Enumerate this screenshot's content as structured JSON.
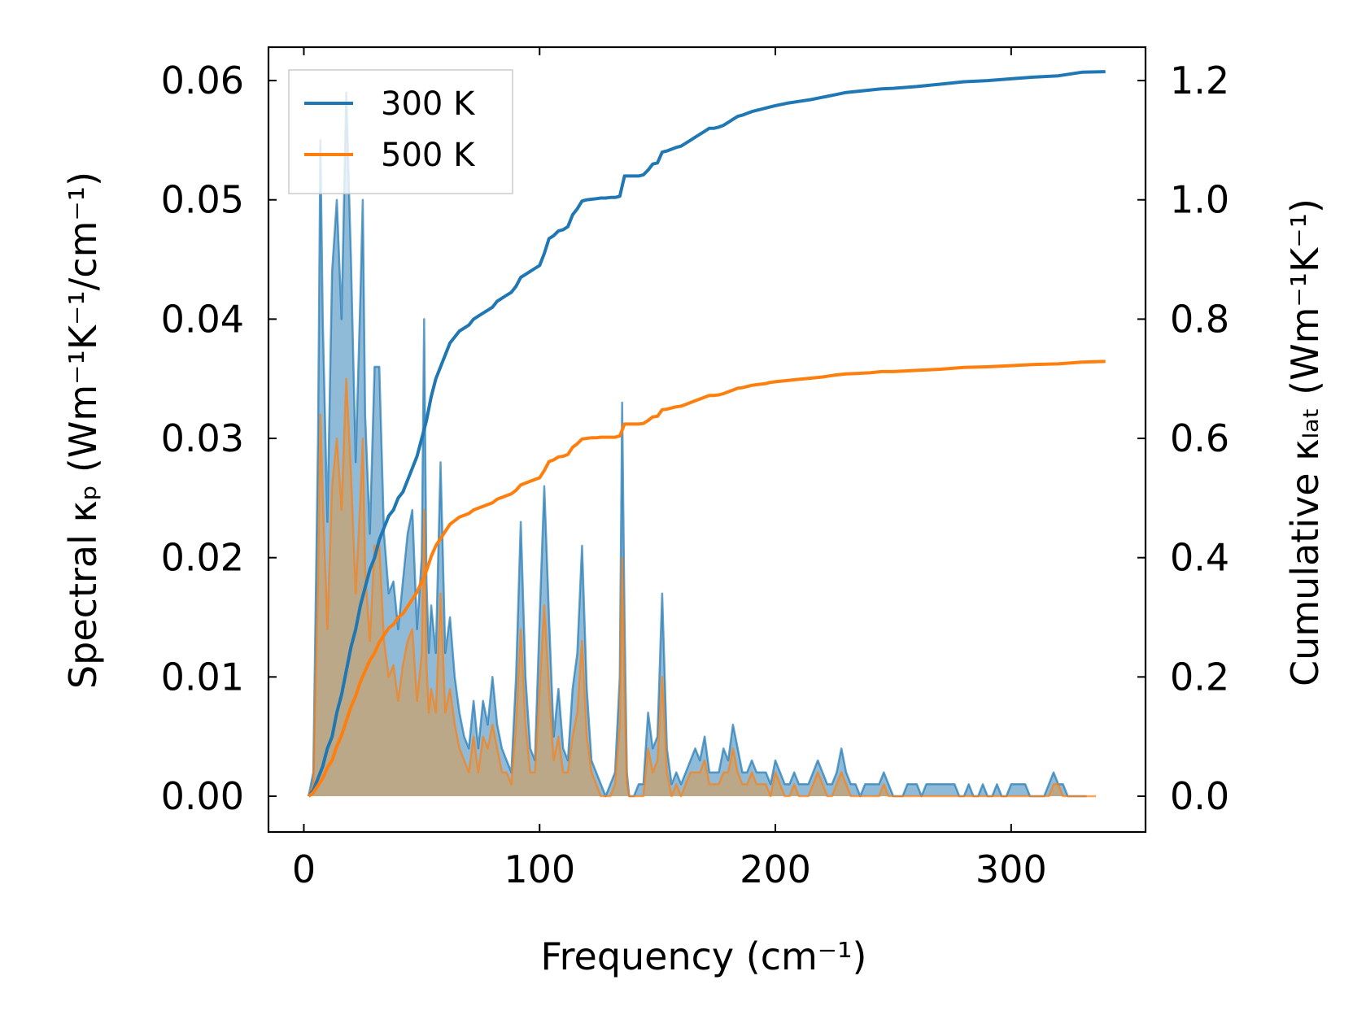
{
  "chart_data": {
    "type": "line",
    "xlabel": "Frequency (cm⁻¹)",
    "ylabel_left": "Spectral κₚ (Wm⁻¹K⁻¹/cm⁻¹)",
    "ylabel_right": "Cumulative κₗₐₜ (Wm⁻¹K⁻¹)",
    "xlim": [
      -15,
      357
    ],
    "ylim_left": [
      -0.003,
      0.0628
    ],
    "ylim_right": [
      -0.06,
      1.256
    ],
    "xticks": [
      0,
      100,
      200,
      300
    ],
    "xtick_labels": [
      "0",
      "100",
      "200",
      "300"
    ],
    "yticks_left": [
      0.0,
      0.01,
      0.02,
      0.03,
      0.04,
      0.05,
      0.06
    ],
    "ytick_labels_left": [
      "0.00",
      "0.01",
      "0.02",
      "0.03",
      "0.04",
      "0.05",
      "0.06"
    ],
    "yticks_right": [
      0.0,
      0.2,
      0.4,
      0.6,
      0.8,
      1.0,
      1.2
    ],
    "ytick_labels_right": [
      "0.0",
      "0.2",
      "0.4",
      "0.6",
      "0.8",
      "1.0",
      "1.2"
    ],
    "legend_position": "top-left",
    "series": [
      {
        "name": "300 K",
        "color": "#1f77b4",
        "fill": "#1f77b4",
        "spectral_x": [
          2,
          4,
          6,
          7,
          8,
          10,
          12,
          14,
          16,
          18,
          20,
          22,
          24,
          25,
          26,
          28,
          30,
          32,
          34,
          36,
          38,
          40,
          42,
          44,
          46,
          48,
          50,
          51,
          52,
          53,
          54,
          56,
          58,
          60,
          62,
          64,
          66,
          68,
          70,
          72,
          74,
          76,
          78,
          80,
          82,
          84,
          86,
          88,
          90,
          92,
          94,
          96,
          98,
          100,
          102,
          104,
          106,
          108,
          110,
          112,
          114,
          116,
          118,
          120,
          122,
          124,
          126,
          128,
          130,
          132,
          134,
          135,
          136,
          137,
          138,
          140,
          142,
          144,
          146,
          148,
          150,
          152,
          154,
          156,
          158,
          160,
          162,
          164,
          166,
          168,
          170,
          172,
          174,
          176,
          178,
          180,
          182,
          184,
          186,
          188,
          190,
          192,
          194,
          196,
          198,
          200,
          202,
          204,
          206,
          208,
          210,
          212,
          214,
          216,
          218,
          220,
          222,
          224,
          226,
          228,
          230,
          232,
          234,
          236,
          238,
          240,
          242,
          244,
          246,
          248,
          250,
          252,
          254,
          256,
          258,
          260,
          262,
          264,
          266,
          268,
          270,
          272,
          274,
          276,
          278,
          280,
          282,
          284,
          286,
          288,
          290,
          292,
          294,
          296,
          298,
          300,
          302,
          304,
          306,
          308,
          310,
          312,
          314,
          316,
          318,
          320,
          322,
          324,
          326,
          328,
          330,
          332,
          334,
          336,
          338,
          340
        ],
        "spectral_y": [
          0.0,
          0.002,
          0.03,
          0.055,
          0.04,
          0.023,
          0.044,
          0.05,
          0.04,
          0.059,
          0.045,
          0.028,
          0.042,
          0.05,
          0.032,
          0.022,
          0.036,
          0.036,
          0.022,
          0.017,
          0.018,
          0.014,
          0.018,
          0.022,
          0.024,
          0.014,
          0.02,
          0.04,
          0.018,
          0.012,
          0.016,
          0.012,
          0.028,
          0.012,
          0.015,
          0.01,
          0.007,
          0.005,
          0.004,
          0.008,
          0.004,
          0.008,
          0.006,
          0.01,
          0.006,
          0.004,
          0.003,
          0.002,
          0.01,
          0.023,
          0.01,
          0.004,
          0.003,
          0.015,
          0.026,
          0.015,
          0.005,
          0.009,
          0.004,
          0.003,
          0.009,
          0.012,
          0.021,
          0.009,
          0.003,
          0.002,
          0.001,
          0.0,
          0.001,
          0.002,
          0.01,
          0.033,
          0.015,
          0.002,
          0.0,
          0.0,
          0.001,
          0.001,
          0.007,
          0.004,
          0.005,
          0.017,
          0.004,
          0.001,
          0.002,
          0.001,
          0.002,
          0.003,
          0.004,
          0.003,
          0.005,
          0.002,
          0.002,
          0.002,
          0.004,
          0.003,
          0.006,
          0.004,
          0.002,
          0.002,
          0.003,
          0.002,
          0.002,
          0.002,
          0.001,
          0.003,
          0.002,
          0.001,
          0.001,
          0.002,
          0.001,
          0.001,
          0.001,
          0.002,
          0.003,
          0.002,
          0.001,
          0.001,
          0.002,
          0.004,
          0.002,
          0.001,
          0.001,
          0.0,
          0.001,
          0.001,
          0.001,
          0.001,
          0.002,
          0.001,
          0.0,
          0.0,
          0.0,
          0.001,
          0.001,
          0.001,
          0.0,
          0.001,
          0.001,
          0.001,
          0.001,
          0.001,
          0.001,
          0.001,
          0.0,
          0.0,
          0.001,
          0.0,
          0.0,
          0.001,
          0.0,
          0.0,
          0.001,
          0.0,
          0.0,
          0.001,
          0.001,
          0.001,
          0.001,
          0.0,
          0.0,
          0.0,
          0.0,
          0.001,
          0.002,
          0.001,
          0.001,
          0.0,
          0.0,
          0.0,
          0.0,
          0.0
        ],
        "cumulative_x": [
          2,
          4,
          6,
          8,
          10,
          12,
          14,
          16,
          18,
          20,
          22,
          24,
          26,
          28,
          30,
          32,
          34,
          36,
          38,
          40,
          42,
          44,
          46,
          48,
          50,
          52,
          54,
          56,
          58,
          60,
          62,
          64,
          66,
          68,
          70,
          72,
          74,
          76,
          78,
          80,
          82,
          84,
          86,
          88,
          90,
          92,
          94,
          96,
          98,
          100,
          102,
          104,
          106,
          108,
          110,
          112,
          114,
          116,
          118,
          120,
          122,
          124,
          126,
          128,
          130,
          132,
          134,
          136,
          138,
          140,
          142,
          144,
          146,
          148,
          150,
          152,
          154,
          156,
          158,
          160,
          162,
          164,
          166,
          168,
          170,
          172,
          174,
          176,
          178,
          180,
          182,
          184,
          186,
          188,
          190,
          192,
          194,
          196,
          198,
          200,
          205,
          210,
          215,
          220,
          225,
          230,
          235,
          240,
          245,
          250,
          260,
          270,
          280,
          290,
          300,
          310,
          320,
          330,
          340
        ],
        "cumulative_y": [
          0.0,
          0.01,
          0.03,
          0.05,
          0.08,
          0.1,
          0.14,
          0.17,
          0.21,
          0.25,
          0.28,
          0.32,
          0.35,
          0.38,
          0.4,
          0.43,
          0.45,
          0.47,
          0.48,
          0.5,
          0.51,
          0.53,
          0.55,
          0.57,
          0.6,
          0.63,
          0.67,
          0.7,
          0.72,
          0.74,
          0.76,
          0.77,
          0.78,
          0.785,
          0.79,
          0.8,
          0.805,
          0.81,
          0.815,
          0.82,
          0.83,
          0.835,
          0.84,
          0.845,
          0.855,
          0.87,
          0.875,
          0.88,
          0.885,
          0.89,
          0.91,
          0.935,
          0.94,
          0.948,
          0.95,
          0.955,
          0.975,
          0.985,
          0.998,
          1.0,
          1.001,
          1.002,
          1.003,
          1.003,
          1.004,
          1.004,
          1.006,
          1.04,
          1.04,
          1.04,
          1.04,
          1.042,
          1.05,
          1.06,
          1.062,
          1.08,
          1.082,
          1.085,
          1.088,
          1.09,
          1.095,
          1.1,
          1.105,
          1.11,
          1.115,
          1.12,
          1.12,
          1.122,
          1.125,
          1.13,
          1.135,
          1.14,
          1.142,
          1.145,
          1.148,
          1.15,
          1.152,
          1.154,
          1.156,
          1.158,
          1.162,
          1.165,
          1.168,
          1.172,
          1.176,
          1.18,
          1.182,
          1.184,
          1.186,
          1.187,
          1.19,
          1.194,
          1.198,
          1.2,
          1.203,
          1.206,
          1.208,
          1.214,
          1.215
        ]
      },
      {
        "name": "500 K",
        "color": "#ff7f0e",
        "fill": "#c8a26e",
        "spectral_x": [
          2,
          4,
          6,
          7,
          8,
          10,
          12,
          14,
          16,
          18,
          20,
          22,
          24,
          25,
          26,
          28,
          30,
          32,
          34,
          36,
          38,
          40,
          42,
          44,
          46,
          48,
          50,
          51,
          52,
          53,
          54,
          56,
          58,
          60,
          62,
          64,
          66,
          68,
          70,
          72,
          74,
          76,
          78,
          80,
          82,
          84,
          86,
          88,
          90,
          92,
          94,
          96,
          98,
          100,
          102,
          104,
          106,
          108,
          110,
          112,
          114,
          116,
          118,
          120,
          122,
          124,
          126,
          128,
          130,
          132,
          134,
          135,
          136,
          137,
          138,
          140,
          142,
          144,
          146,
          148,
          150,
          152,
          154,
          156,
          158,
          160,
          162,
          164,
          166,
          168,
          170,
          172,
          174,
          176,
          178,
          180,
          182,
          184,
          186,
          188,
          190,
          192,
          194,
          196,
          198,
          200,
          202,
          204,
          206,
          208,
          210,
          212,
          214,
          216,
          218,
          220,
          222,
          224,
          226,
          228,
          230,
          232,
          234,
          236,
          238,
          240,
          242,
          244,
          246,
          248,
          250,
          252,
          254,
          256,
          258,
          260,
          262,
          264,
          266,
          268,
          270,
          272,
          274,
          276,
          278,
          280,
          282,
          284,
          286,
          288,
          290,
          292,
          294,
          296,
          298,
          300,
          302,
          304,
          306,
          308,
          310,
          312,
          314,
          316,
          318,
          320,
          322,
          324,
          326,
          328,
          330,
          332,
          334,
          336,
          338,
          340
        ],
        "spectral_y": [
          0.0,
          0.001,
          0.018,
          0.032,
          0.025,
          0.014,
          0.026,
          0.03,
          0.024,
          0.035,
          0.027,
          0.017,
          0.025,
          0.03,
          0.019,
          0.013,
          0.021,
          0.021,
          0.013,
          0.01,
          0.011,
          0.008,
          0.011,
          0.013,
          0.014,
          0.008,
          0.012,
          0.024,
          0.011,
          0.007,
          0.009,
          0.007,
          0.017,
          0.007,
          0.009,
          0.006,
          0.004,
          0.003,
          0.002,
          0.005,
          0.002,
          0.005,
          0.004,
          0.006,
          0.004,
          0.002,
          0.002,
          0.001,
          0.006,
          0.014,
          0.006,
          0.002,
          0.002,
          0.009,
          0.016,
          0.009,
          0.003,
          0.005,
          0.002,
          0.002,
          0.005,
          0.007,
          0.013,
          0.005,
          0.002,
          0.001,
          0.0,
          0.0,
          0.0,
          0.001,
          0.006,
          0.02,
          0.009,
          0.001,
          0.0,
          0.0,
          0.0,
          0.0,
          0.004,
          0.002,
          0.003,
          0.01,
          0.002,
          0.0,
          0.001,
          0.0,
          0.001,
          0.002,
          0.002,
          0.002,
          0.003,
          0.001,
          0.001,
          0.001,
          0.002,
          0.002,
          0.004,
          0.002,
          0.001,
          0.001,
          0.002,
          0.001,
          0.001,
          0.001,
          0.0,
          0.002,
          0.001,
          0.0,
          0.0,
          0.001,
          0.0,
          0.0,
          0.0,
          0.001,
          0.002,
          0.001,
          0.0,
          0.0,
          0.001,
          0.002,
          0.001,
          0.0,
          0.0,
          0.0,
          0.0,
          0.0,
          0.0,
          0.0,
          0.001,
          0.0,
          0.0,
          0.0,
          0.0,
          0.0,
          0.0,
          0.0,
          0.0,
          0.0,
          0.0,
          0.0,
          0.0,
          0.0,
          0.0,
          0.0,
          0.0,
          0.0,
          0.0,
          0.0,
          0.0,
          0.0,
          0.0,
          0.0,
          0.0,
          0.0,
          0.0,
          0.0,
          0.0,
          0.0,
          0.0,
          0.0,
          0.0,
          0.0,
          0.0,
          0.0,
          0.001,
          0.001,
          0.0,
          0.0,
          0.0,
          0.0,
          0.0,
          0.0,
          0.0,
          0.0
        ],
        "cumulative_x": [
          2,
          4,
          6,
          8,
          10,
          12,
          14,
          16,
          18,
          20,
          22,
          24,
          26,
          28,
          30,
          32,
          34,
          36,
          38,
          40,
          42,
          44,
          46,
          48,
          50,
          52,
          54,
          56,
          58,
          60,
          62,
          64,
          66,
          68,
          70,
          72,
          74,
          76,
          78,
          80,
          82,
          84,
          86,
          88,
          90,
          92,
          94,
          96,
          98,
          100,
          102,
          104,
          106,
          108,
          110,
          112,
          114,
          116,
          118,
          120,
          122,
          124,
          126,
          128,
          130,
          132,
          134,
          136,
          138,
          140,
          142,
          144,
          146,
          148,
          150,
          152,
          154,
          156,
          158,
          160,
          162,
          164,
          166,
          168,
          170,
          172,
          174,
          176,
          178,
          180,
          182,
          184,
          186,
          188,
          190,
          192,
          194,
          196,
          198,
          200,
          205,
          210,
          215,
          220,
          225,
          230,
          235,
          240,
          245,
          250,
          260,
          270,
          280,
          290,
          300,
          310,
          320,
          330,
          340
        ],
        "cumulative_y": [
          0.0,
          0.006,
          0.018,
          0.03,
          0.048,
          0.06,
          0.084,
          0.102,
          0.126,
          0.15,
          0.168,
          0.192,
          0.21,
          0.228,
          0.24,
          0.258,
          0.27,
          0.282,
          0.288,
          0.3,
          0.306,
          0.318,
          0.33,
          0.342,
          0.36,
          0.378,
          0.402,
          0.42,
          0.432,
          0.444,
          0.456,
          0.462,
          0.468,
          0.471,
          0.474,
          0.48,
          0.483,
          0.486,
          0.489,
          0.492,
          0.498,
          0.501,
          0.504,
          0.507,
          0.513,
          0.522,
          0.525,
          0.528,
          0.531,
          0.534,
          0.546,
          0.561,
          0.564,
          0.569,
          0.57,
          0.573,
          0.585,
          0.591,
          0.599,
          0.6,
          0.601,
          0.601,
          0.602,
          0.602,
          0.602,
          0.602,
          0.604,
          0.624,
          0.624,
          0.624,
          0.624,
          0.625,
          0.63,
          0.636,
          0.637,
          0.648,
          0.649,
          0.651,
          0.653,
          0.654,
          0.657,
          0.66,
          0.663,
          0.666,
          0.669,
          0.672,
          0.672,
          0.673,
          0.675,
          0.678,
          0.681,
          0.684,
          0.685,
          0.687,
          0.689,
          0.69,
          0.691,
          0.692,
          0.694,
          0.695,
          0.697,
          0.699,
          0.701,
          0.703,
          0.706,
          0.708,
          0.709,
          0.71,
          0.712,
          0.712,
          0.714,
          0.716,
          0.719,
          0.72,
          0.722,
          0.724,
          0.725,
          0.728,
          0.729
        ]
      }
    ]
  }
}
